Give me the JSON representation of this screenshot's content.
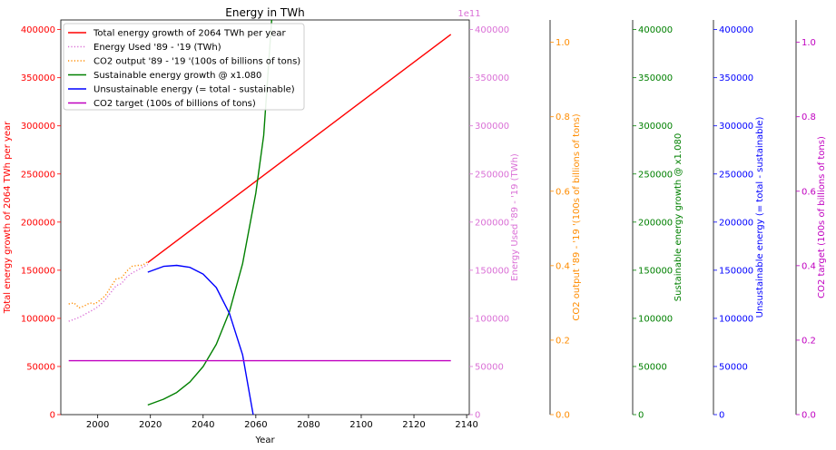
{
  "chart_data": {
    "type": "line",
    "title": "Energy in TWh",
    "xlabel": "Year",
    "xlim": [
      1986,
      2141
    ],
    "x_ticks": [
      "2000",
      "2020",
      "2040",
      "2060",
      "2080",
      "2100",
      "2120",
      "2140"
    ],
    "x_tick_values": [
      2000,
      2020,
      2040,
      2060,
      2080,
      2100,
      2120,
      2140
    ],
    "axes": [
      {
        "id": "total",
        "label": "Total energy growth of 2064 TWh per year",
        "color": "#ff0000",
        "ylim": [
          0,
          410000
        ],
        "ticks": [
          "0",
          "50000",
          "100000",
          "150000",
          "200000",
          "250000",
          "300000",
          "350000",
          "400000"
        ],
        "tick_values": [
          0,
          50000,
          100000,
          150000,
          200000,
          250000,
          300000,
          350000,
          400000
        ]
      },
      {
        "id": "used",
        "label": "Energy Used '89 - '19 (TWh)",
        "color": "#da70d6",
        "offset_label": "1e11",
        "ylim": [
          0,
          410000
        ],
        "ticks": [
          "0",
          "50000",
          "100000",
          "150000",
          "200000",
          "250000",
          "300000",
          "350000",
          "400000"
        ],
        "tick_values": [
          0,
          50000,
          100000,
          150000,
          200000,
          250000,
          300000,
          350000,
          400000
        ]
      },
      {
        "id": "co2",
        "label": "CO2 output '89 - '19 '(100s of billions of tons)",
        "color": "#ff8c00",
        "ylim": [
          0,
          1.06
        ],
        "ticks": [
          "0.0",
          "0.2",
          "0.4",
          "0.6",
          "0.8",
          "1.0"
        ],
        "tick_values": [
          0,
          0.2,
          0.4,
          0.6,
          0.8,
          1.0
        ]
      },
      {
        "id": "sustainable",
        "label": "Sustainable energy growth @ x1.080",
        "color": "#008000",
        "ylim": [
          0,
          410000
        ],
        "ticks": [
          "0",
          "50000",
          "100000",
          "150000",
          "200000",
          "250000",
          "300000",
          "350000",
          "400000"
        ],
        "tick_values": [
          0,
          50000,
          100000,
          150000,
          200000,
          250000,
          300000,
          350000,
          400000
        ]
      },
      {
        "id": "unsustainable",
        "label": "Unsustainable energy (= total - sustainable)",
        "color": "#0000ff",
        "ylim": [
          0,
          410000
        ],
        "ticks": [
          "0",
          "50000",
          "100000",
          "150000",
          "200000",
          "250000",
          "300000",
          "350000",
          "400000"
        ],
        "tick_values": [
          0,
          50000,
          100000,
          150000,
          200000,
          250000,
          300000,
          350000,
          400000
        ]
      },
      {
        "id": "co2target",
        "label": "CO2 target (100s of billions of tons)",
        "color": "#c000c0",
        "ylim": [
          0,
          1.06
        ],
        "ticks": [
          "0.0",
          "0.2",
          "0.4",
          "0.6",
          "0.8",
          "1.0"
        ],
        "tick_values": [
          0,
          0.2,
          0.4,
          0.6,
          0.8,
          1.0
        ]
      }
    ],
    "legend_position": "top-left",
    "series": [
      {
        "name": "Total energy growth of 2064 TWh per year",
        "color": "#ff0000",
        "style": "solid",
        "x": [
          2019,
          2134
        ],
        "y": [
          158000,
          395000
        ]
      },
      {
        "name": "Energy Used '89 - '19 (TWh)",
        "color": "#da70d6",
        "style": "dotted",
        "x": [
          1989,
          1991,
          1993,
          1995,
          1997,
          1999,
          2001,
          2003,
          2005,
          2007,
          2009,
          2011,
          2013,
          2015,
          2017,
          2019
        ],
        "y": [
          97000,
          99000,
          101000,
          104000,
          107000,
          110000,
          114000,
          120000,
          127000,
          134000,
          136000,
          143000,
          147000,
          150000,
          153000,
          156000
        ]
      },
      {
        "name": "CO2 output '89 - '19 '(100s of billions of tons)",
        "color": "#ff8c00",
        "style": "dotted",
        "x": [
          1989,
          1991,
          1993,
          1995,
          1997,
          1999,
          2001,
          2003,
          2005,
          2007,
          2009,
          2011,
          2013,
          2015,
          2017,
          2019
        ],
        "y": [
          115000,
          116000,
          111000,
          113000,
          116000,
          115000,
          119000,
          124000,
          133000,
          141000,
          142000,
          149000,
          154000,
          155000,
          155000,
          159000
        ]
      },
      {
        "name": "Sustainable energy growth @ x1.080",
        "color": "#008000",
        "style": "solid",
        "x": [
          2019,
          2025,
          2030,
          2035,
          2040,
          2045,
          2050,
          2055,
          2060,
          2063,
          2066
        ],
        "y": [
          10000,
          16000,
          23000,
          34000,
          50000,
          73000,
          107000,
          157000,
          230000,
          290000,
          410000
        ]
      },
      {
        "name": "Unsustainable energy (= total - sustainable)",
        "color": "#0000ff",
        "style": "solid",
        "x": [
          2019,
          2025,
          2030,
          2035,
          2040,
          2045,
          2050,
          2055,
          2059
        ],
        "y": [
          148000,
          154000,
          155000,
          153000,
          146000,
          132000,
          105000,
          62000,
          0
        ]
      },
      {
        "name": "CO2 target (100s of billions of tons)",
        "color": "#c000c0",
        "style": "solid",
        "x": [
          1989,
          2134
        ],
        "y": [
          56000,
          56000
        ]
      }
    ]
  }
}
